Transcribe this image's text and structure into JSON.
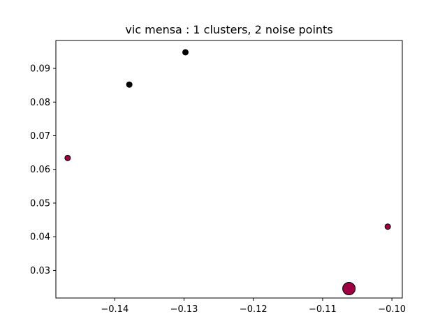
{
  "chart_data": {
    "type": "scatter",
    "title": "vic mensa : 1 clusters, 2 noise points",
    "xlabel": "",
    "ylabel": "",
    "xlim": [
      -0.1485,
      -0.0985
    ],
    "ylim": [
      0.0218,
      0.0983
    ],
    "grid": false,
    "x_ticks": [
      {
        "value": -0.14,
        "label": "−0.14"
      },
      {
        "value": -0.13,
        "label": "−0.13"
      },
      {
        "value": -0.12,
        "label": "−0.12"
      },
      {
        "value": -0.11,
        "label": "−0.11"
      },
      {
        "value": -0.1,
        "label": "−0.10"
      }
    ],
    "y_ticks": [
      {
        "value": 0.03,
        "label": "0.03"
      },
      {
        "value": 0.04,
        "label": "0.04"
      },
      {
        "value": 0.05,
        "label": "0.05"
      },
      {
        "value": 0.06,
        "label": "0.06"
      },
      {
        "value": 0.07,
        "label": "0.07"
      },
      {
        "value": 0.08,
        "label": "0.08"
      },
      {
        "value": 0.09,
        "label": "0.09"
      }
    ],
    "points": [
      {
        "x": -0.1298,
        "y": 0.0948,
        "group": "noise",
        "color": "#000000",
        "size": "small"
      },
      {
        "x": -0.1379,
        "y": 0.0852,
        "group": "noise",
        "color": "#000000",
        "size": "small"
      },
      {
        "x": -0.1468,
        "y": 0.0634,
        "group": "cluster",
        "color": "#9e0142",
        "size": "small"
      },
      {
        "x": -0.1006,
        "y": 0.043,
        "group": "cluster",
        "color": "#9e0142",
        "size": "small"
      },
      {
        "x": -0.1062,
        "y": 0.0246,
        "group": "cluster",
        "color": "#9e0142",
        "size": "large"
      }
    ]
  }
}
